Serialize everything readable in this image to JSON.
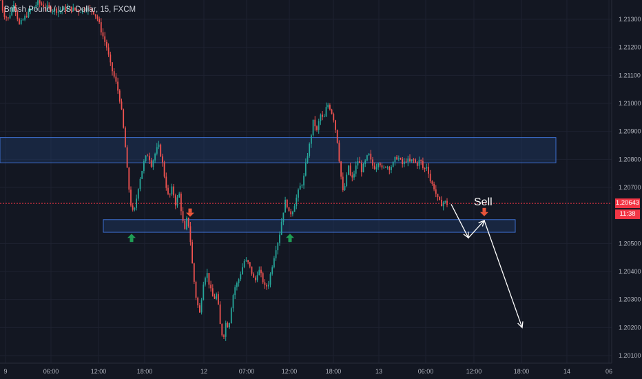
{
  "header": {
    "symbol_title": "British Pound / U.S. Dollar, 15, FXCM"
  },
  "colors": {
    "bg": "#131722",
    "up": "#26a69a",
    "down": "#ef5350",
    "zone_fill": "#1e3a66",
    "zone_stroke": "#3d6fcf",
    "arrow_up": "#1f9d55",
    "arrow_down": "#e8553a",
    "price_line": "#f23645",
    "grid": "#1e2230"
  },
  "price_tag": {
    "price": "1.20643",
    "countdown": "11:38"
  },
  "annotations": {
    "sell_label": "Sell"
  },
  "chart_data": {
    "type": "candlestick",
    "title": "British Pound / U.S. Dollar, 15, FXCM",
    "y_ticks": [
      "1.21300",
      "1.21200",
      "1.21100",
      "1.21000",
      "1.20900",
      "1.20800",
      "1.20700",
      "1.20500",
      "1.20400",
      "1.20300",
      "1.20200",
      "1.20100"
    ],
    "y_range": [
      1.2008,
      1.2138
    ],
    "x_ticks": [
      "9",
      "06:00",
      "12:00",
      "18:00",
      "12",
      "07:00",
      "12:00",
      "18:00",
      "13",
      "06:00",
      "12:00",
      "18:00",
      "14",
      "06"
    ],
    "last_price": 1.20643,
    "price_path": [
      [
        0,
        1.2138
      ],
      [
        5,
        1.2132
      ],
      [
        12,
        1.213
      ],
      [
        20,
        1.2136
      ],
      [
        28,
        1.2128
      ],
      [
        40,
        1.2132
      ],
      [
        55,
        1.2136
      ],
      [
        70,
        1.2134
      ],
      [
        85,
        1.2133
      ],
      [
        100,
        1.2134
      ],
      [
        115,
        1.2133
      ],
      [
        125,
        1.2134
      ],
      [
        135,
        1.2133
      ],
      [
        142,
        1.213
      ],
      [
        148,
        1.2125
      ],
      [
        155,
        1.212
      ],
      [
        160,
        1.2114
      ],
      [
        165,
        1.211
      ],
      [
        170,
        1.2106
      ],
      [
        175,
        1.21
      ],
      [
        178,
        1.2094
      ],
      [
        182,
        1.2084
      ],
      [
        186,
        1.2072
      ],
      [
        190,
        1.2064
      ],
      [
        194,
        1.206
      ],
      [
        198,
        1.2066
      ],
      [
        202,
        1.2072
      ],
      [
        206,
        1.2076
      ],
      [
        210,
        1.208
      ],
      [
        215,
        1.2082
      ],
      [
        220,
        1.2078
      ],
      [
        225,
        1.2082
      ],
      [
        230,
        1.2085
      ],
      [
        235,
        1.208
      ],
      [
        240,
        1.2072
      ],
      [
        245,
        1.2066
      ],
      [
        250,
        1.207
      ],
      [
        255,
        1.2064
      ],
      [
        260,
        1.2068
      ],
      [
        264,
        1.206
      ],
      [
        268,
        1.2054
      ],
      [
        272,
        1.206
      ],
      [
        276,
        1.2052
      ],
      [
        280,
        1.204
      ],
      [
        285,
        1.203
      ],
      [
        290,
        1.2025
      ],
      [
        295,
        1.2036
      ],
      [
        300,
        1.204
      ],
      [
        305,
        1.2034
      ],
      [
        310,
        1.203
      ],
      [
        315,
        1.2032
      ],
      [
        320,
        1.202
      ],
      [
        324,
        1.2016
      ],
      [
        328,
        1.2022
      ],
      [
        332,
        1.202
      ],
      [
        336,
        1.2028
      ],
      [
        340,
        1.2034
      ],
      [
        345,
        1.2036
      ],
      [
        350,
        1.204
      ],
      [
        355,
        1.2044
      ],
      [
        360,
        1.2043
      ],
      [
        365,
        1.204
      ],
      [
        370,
        1.2036
      ],
      [
        375,
        1.2041
      ],
      [
        380,
        1.2038
      ],
      [
        385,
        1.2034
      ],
      [
        390,
        1.2036
      ],
      [
        395,
        1.2042
      ],
      [
        400,
        1.2048
      ],
      [
        405,
        1.2052
      ],
      [
        410,
        1.206
      ],
      [
        415,
        1.2066
      ],
      [
        420,
        1.206
      ],
      [
        425,
        1.2062
      ],
      [
        430,
        1.2066
      ],
      [
        435,
        1.207
      ],
      [
        440,
        1.2072
      ],
      [
        445,
        1.208
      ],
      [
        450,
        1.2086
      ],
      [
        455,
        1.2094
      ],
      [
        460,
        1.209
      ],
      [
        465,
        1.2096
      ],
      [
        470,
        1.2094
      ],
      [
        475,
        1.21
      ],
      [
        480,
        1.2098
      ],
      [
        485,
        1.2094
      ],
      [
        490,
        1.2086
      ],
      [
        494,
        1.2076
      ],
      [
        498,
        1.2068
      ],
      [
        502,
        1.2072
      ],
      [
        506,
        1.2078
      ],
      [
        510,
        1.2072
      ],
      [
        515,
        1.2076
      ],
      [
        520,
        1.208
      ],
      [
        525,
        1.2076
      ],
      [
        530,
        1.2079
      ],
      [
        535,
        1.2082
      ],
      [
        540,
        1.2078
      ],
      [
        545,
        1.2077
      ],
      [
        550,
        1.208
      ],
      [
        555,
        1.2076
      ],
      [
        560,
        1.2078
      ],
      [
        565,
        1.2077
      ],
      [
        570,
        1.2078
      ],
      [
        575,
        1.2081
      ],
      [
        580,
        1.208
      ],
      [
        585,
        1.2078
      ],
      [
        590,
        1.208
      ],
      [
        595,
        1.2079
      ],
      [
        600,
        1.208
      ],
      [
        605,
        1.2078
      ],
      [
        610,
        1.208
      ],
      [
        615,
        1.2076
      ],
      [
        620,
        1.2078
      ],
      [
        625,
        1.2072
      ],
      [
        630,
        1.207
      ],
      [
        635,
        1.2066
      ],
      [
        640,
        1.2064
      ],
      [
        645,
        1.2065
      ],
      [
        650,
        1.2064
      ]
    ],
    "zones": [
      {
        "from": 1.20788,
        "to": 1.20878,
        "x_start": 0,
        "x_end": 807
      },
      {
        "from": 1.2054,
        "to": 1.20585,
        "x_start": 150,
        "x_end": 748
      }
    ],
    "markers": [
      {
        "type": "up",
        "x": 191,
        "price": 1.2052
      },
      {
        "type": "down",
        "x": 276,
        "price": 1.2061
      },
      {
        "type": "up",
        "x": 421,
        "price": 1.2052
      },
      {
        "type": "down",
        "x": 703,
        "price": 1.20612
      }
    ],
    "projection": [
      [
        655,
        1.2064
      ],
      [
        680,
        1.2052
      ],
      [
        703,
        1.20582
      ],
      [
        758,
        1.202
      ]
    ]
  }
}
